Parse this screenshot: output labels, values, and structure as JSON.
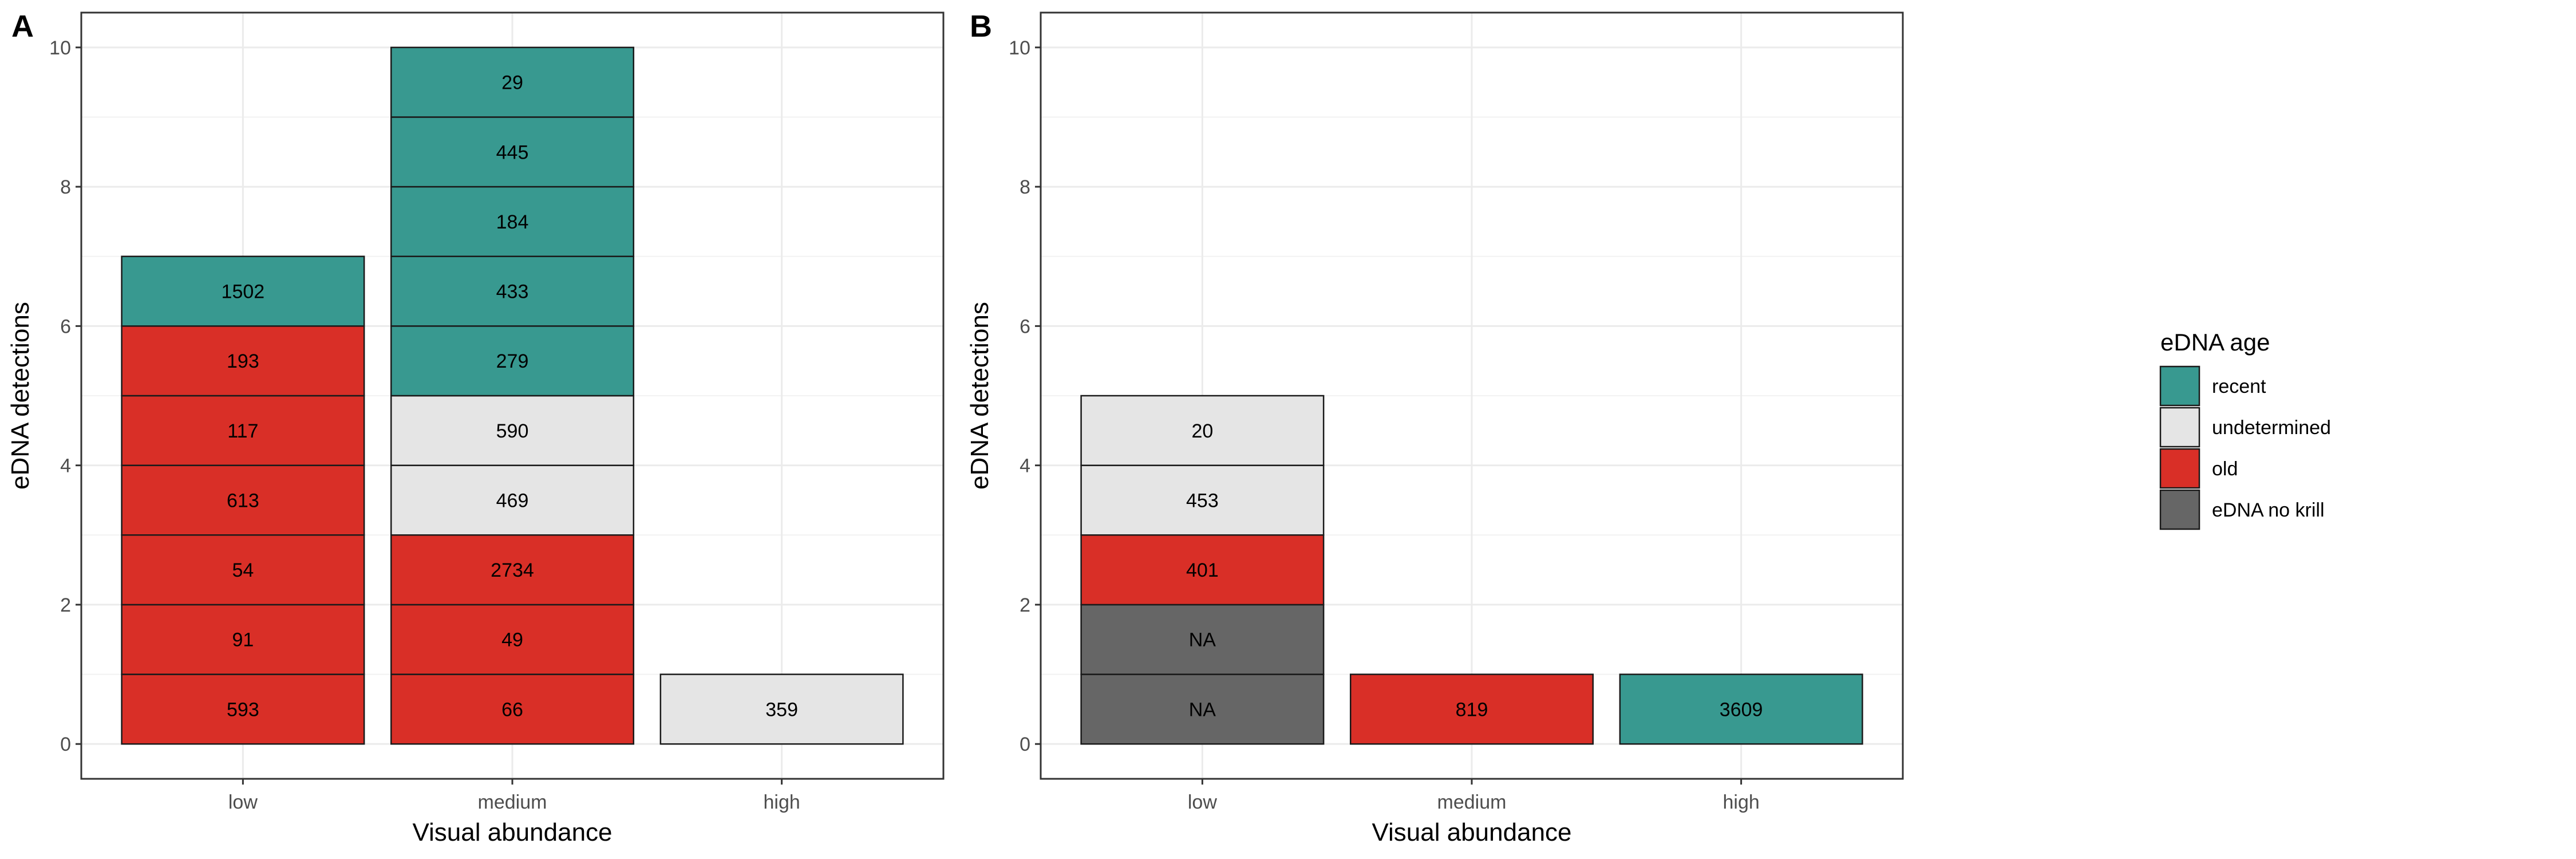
{
  "colors": {
    "recent": "#389990",
    "undetermined": "#e5e5e5",
    "old": "#d92f27",
    "eDNA no krill": "#666666"
  },
  "legend": {
    "title": "eDNA age",
    "entries": [
      "recent",
      "undetermined",
      "old",
      "eDNA no krill"
    ]
  },
  "chart_data": [
    {
      "type": "bar",
      "stacked": true,
      "panel": "A",
      "xlabel": "Visual abundance",
      "ylabel": "eDNA detections",
      "categories": [
        "low",
        "medium",
        "high"
      ],
      "ylim": [
        0,
        10
      ],
      "yticks": [
        0,
        2,
        4,
        6,
        8,
        10
      ],
      "grid": true,
      "stacks": [
        {
          "category": "low",
          "segments": [
            {
              "label": "593",
              "group": "old",
              "value": 1
            },
            {
              "label": "91",
              "group": "old",
              "value": 1
            },
            {
              "label": "54",
              "group": "old",
              "value": 1
            },
            {
              "label": "613",
              "group": "old",
              "value": 1
            },
            {
              "label": "117",
              "group": "old",
              "value": 1
            },
            {
              "label": "193",
              "group": "old",
              "value": 1
            },
            {
              "label": "1502",
              "group": "recent",
              "value": 1
            }
          ]
        },
        {
          "category": "medium",
          "segments": [
            {
              "label": "66",
              "group": "old",
              "value": 1
            },
            {
              "label": "49",
              "group": "old",
              "value": 1
            },
            {
              "label": "2734",
              "group": "old",
              "value": 1
            },
            {
              "label": "469",
              "group": "undetermined",
              "value": 1
            },
            {
              "label": "590",
              "group": "undetermined",
              "value": 1
            },
            {
              "label": "279",
              "group": "recent",
              "value": 1
            },
            {
              "label": "433",
              "group": "recent",
              "value": 1
            },
            {
              "label": "184",
              "group": "recent",
              "value": 1
            },
            {
              "label": "445",
              "group": "recent",
              "value": 1
            },
            {
              "label": "29",
              "group": "recent",
              "value": 1
            }
          ]
        },
        {
          "category": "high",
          "segments": [
            {
              "label": "359",
              "group": "undetermined",
              "value": 1
            }
          ]
        }
      ]
    },
    {
      "type": "bar",
      "stacked": true,
      "panel": "B",
      "xlabel": "Visual abundance",
      "ylabel": "eDNA detections",
      "categories": [
        "low",
        "medium",
        "high"
      ],
      "ylim": [
        0,
        10
      ],
      "yticks": [
        0,
        2,
        4,
        6,
        8,
        10
      ],
      "grid": true,
      "stacks": [
        {
          "category": "low",
          "segments": [
            {
              "label": "NA",
              "group": "eDNA no krill",
              "value": 1
            },
            {
              "label": "NA",
              "group": "eDNA no krill",
              "value": 1
            },
            {
              "label": "401",
              "group": "old",
              "value": 1
            },
            {
              "label": "453",
              "group": "undetermined",
              "value": 1
            },
            {
              "label": "20",
              "group": "undetermined",
              "value": 1
            }
          ]
        },
        {
          "category": "medium",
          "segments": [
            {
              "label": "819",
              "group": "old",
              "value": 1
            }
          ]
        },
        {
          "category": "high",
          "segments": [
            {
              "label": "3609",
              "group": "recent",
              "value": 1
            }
          ]
        }
      ]
    }
  ]
}
